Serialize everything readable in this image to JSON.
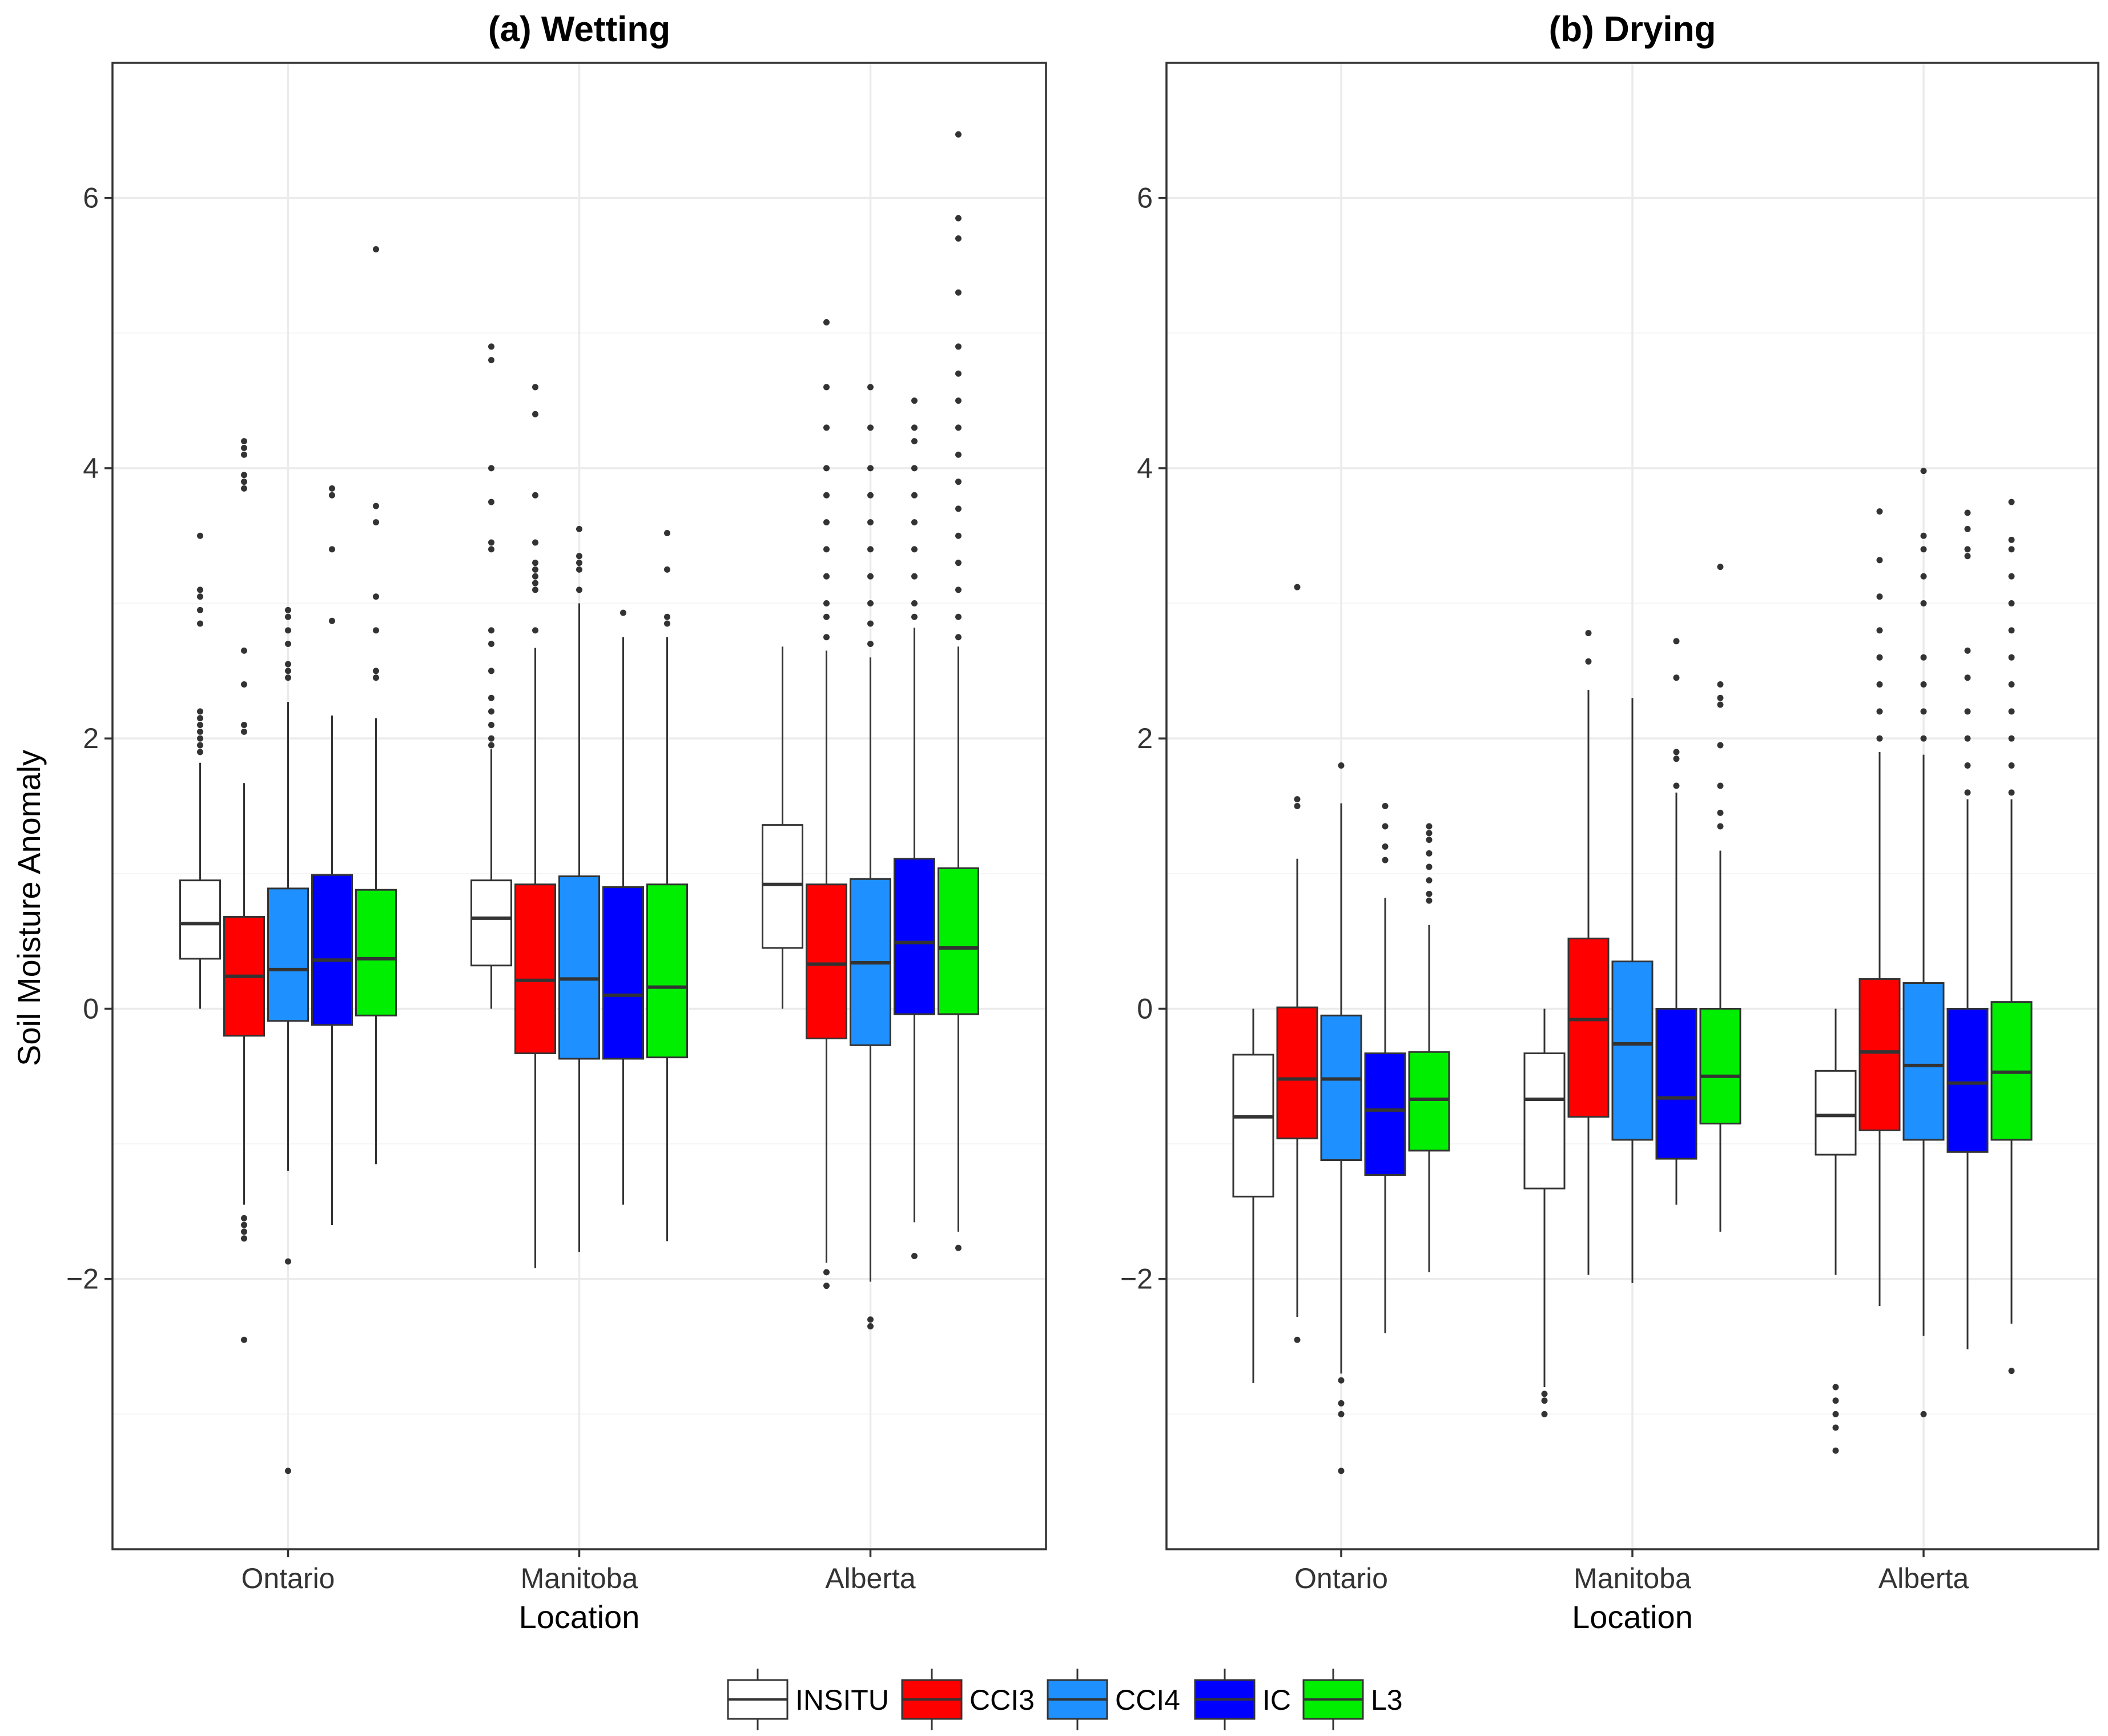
{
  "chart_data": [
    {
      "type": "box",
      "title": "(a) Wetting",
      "xlabel": "Location",
      "ylabel": "Soil Moisture Anomaly",
      "ylim": [
        -4.0,
        7.0
      ],
      "yticks": [
        -2,
        0,
        2,
        4,
        6
      ],
      "ytick_labels": [
        "−2",
        "0",
        "2",
        "4",
        "6"
      ],
      "grid": true,
      "categories": [
        "Ontario",
        "Manitoba",
        "Alberta"
      ],
      "series": [
        {
          "name": "INSITU",
          "boxes": [
            {
              "low": 0.0,
              "q1": 0.37,
              "median": 0.63,
              "q3": 0.95,
              "high": 1.82,
              "outliers": [
                1.9,
                1.95,
                2.0,
                2.05,
                2.1,
                2.15,
                2.2,
                2.85,
                2.95,
                3.05,
                3.1,
                3.5
              ]
            },
            {
              "low": 0.0,
              "q1": 0.32,
              "median": 0.67,
              "q3": 0.95,
              "high": 1.92,
              "outliers": [
                1.95,
                2.0,
                2.1,
                2.2,
                2.3,
                2.5,
                2.7,
                2.8,
                3.4,
                3.45,
                3.75,
                4.0,
                4.8,
                4.9
              ]
            },
            {
              "low": 0.0,
              "q1": 0.45,
              "median": 0.92,
              "q3": 1.36,
              "high": 2.68,
              "outliers": []
            }
          ]
        },
        {
          "name": "CCI3",
          "boxes": [
            {
              "low": -1.45,
              "q1": -0.2,
              "median": 0.24,
              "q3": 0.68,
              "high": 1.67,
              "outliers": [
                -1.55,
                -1.6,
                -1.65,
                -1.7,
                -2.45,
                2.05,
                2.1,
                2.4,
                2.65,
                3.85,
                3.9,
                3.95,
                4.1,
                4.15,
                4.2
              ]
            },
            {
              "low": -1.92,
              "q1": -0.33,
              "median": 0.21,
              "q3": 0.92,
              "high": 2.67,
              "outliers": [
                2.8,
                3.1,
                3.15,
                3.2,
                3.25,
                3.3,
                3.45,
                3.8,
                4.4,
                4.6
              ]
            },
            {
              "low": -1.88,
              "q1": -0.22,
              "median": 0.33,
              "q3": 0.92,
              "high": 2.65,
              "outliers": [
                -1.95,
                -2.05,
                2.75,
                2.9,
                3.0,
                3.2,
                3.4,
                3.6,
                3.8,
                4.0,
                4.3,
                4.6,
                5.08
              ]
            }
          ]
        },
        {
          "name": "CCI4",
          "boxes": [
            {
              "low": -1.2,
              "q1": -0.09,
              "median": 0.29,
              "q3": 0.89,
              "high": 2.27,
              "outliers": [
                -1.87,
                -3.42,
                2.45,
                2.5,
                2.55,
                2.7,
                2.8,
                2.9,
                2.95
              ]
            },
            {
              "low": -1.8,
              "q1": -0.37,
              "median": 0.22,
              "q3": 0.98,
              "high": 3.0,
              "outliers": [
                3.1,
                3.25,
                3.3,
                3.35,
                3.55
              ]
            },
            {
              "low": -2.02,
              "q1": -0.27,
              "median": 0.34,
              "q3": 0.96,
              "high": 2.6,
              "outliers": [
                -2.3,
                -2.35,
                2.7,
                2.85,
                3.0,
                3.2,
                3.4,
                3.6,
                3.8,
                4.0,
                4.3,
                4.6
              ]
            }
          ]
        },
        {
          "name": "IC",
          "boxes": [
            {
              "low": -1.6,
              "q1": -0.12,
              "median": 0.36,
              "q3": 0.99,
              "high": 2.17,
              "outliers": [
                2.87,
                3.4,
                3.8,
                3.85
              ]
            },
            {
              "low": -1.45,
              "q1": -0.37,
              "median": 0.1,
              "q3": 0.9,
              "high": 2.75,
              "outliers": [
                2.93
              ]
            },
            {
              "low": -1.58,
              "q1": -0.04,
              "median": 0.49,
              "q3": 1.11,
              "high": 2.82,
              "outliers": [
                -1.83,
                2.9,
                3.0,
                3.2,
                3.4,
                3.6,
                3.8,
                4.0,
                4.2,
                4.3,
                4.5
              ]
            }
          ]
        },
        {
          "name": "L3",
          "boxes": [
            {
              "low": -1.15,
              "q1": -0.05,
              "median": 0.37,
              "q3": 0.88,
              "high": 2.15,
              "outliers": [
                2.45,
                2.5,
                2.8,
                3.05,
                3.6,
                3.72,
                5.62
              ]
            },
            {
              "low": -1.72,
              "q1": -0.36,
              "median": 0.16,
              "q3": 0.92,
              "high": 2.75,
              "outliers": [
                2.85,
                2.9,
                3.25,
                3.52
              ]
            },
            {
              "low": -1.65,
              "q1": -0.04,
              "median": 0.45,
              "q3": 1.04,
              "high": 2.68,
              "outliers": [
                -1.77,
                2.75,
                2.9,
                3.1,
                3.3,
                3.5,
                3.7,
                3.9,
                4.1,
                4.3,
                4.5,
                4.7,
                4.9,
                5.3,
                5.7,
                5.85,
                6.47
              ]
            }
          ]
        }
      ]
    },
    {
      "type": "box",
      "title": "(b) Drying",
      "xlabel": "Location",
      "ylabel": "",
      "ylim": [
        -4.0,
        7.0
      ],
      "yticks": [
        -2,
        0,
        2,
        4,
        6
      ],
      "ytick_labels": [
        "−2",
        "0",
        "2",
        "4",
        "6"
      ],
      "grid": true,
      "categories": [
        "Ontario",
        "Manitoba",
        "Alberta"
      ],
      "series": [
        {
          "name": "INSITU",
          "boxes": [
            {
              "low": -2.77,
              "q1": -1.39,
              "median": -0.8,
              "q3": -0.34,
              "high": 0.0,
              "outliers": []
            },
            {
              "low": -2.8,
              "q1": -1.33,
              "median": -0.67,
              "q3": -0.33,
              "high": 0.0,
              "outliers": [
                -2.85,
                -2.9,
                -3.0
              ]
            },
            {
              "low": -1.97,
              "q1": -1.08,
              "median": -0.79,
              "q3": -0.46,
              "high": 0.0,
              "outliers": [
                -2.8,
                -2.9,
                -3.0,
                -3.1,
                -3.27
              ]
            }
          ]
        },
        {
          "name": "CCI3",
          "boxes": [
            {
              "low": -2.28,
              "q1": -0.96,
              "median": -0.52,
              "q3": 0.01,
              "high": 1.11,
              "outliers": [
                -2.45,
                1.5,
                1.55,
                3.12
              ]
            },
            {
              "low": -1.97,
              "q1": -0.8,
              "median": -0.08,
              "q3": 0.52,
              "high": 2.36,
              "outliers": [
                2.57,
                2.78
              ]
            },
            {
              "low": -2.2,
              "q1": -0.9,
              "median": -0.32,
              "q3": 0.22,
              "high": 1.9,
              "outliers": [
                2.0,
                2.2,
                2.4,
                2.6,
                2.8,
                3.05,
                3.32,
                3.68
              ]
            }
          ]
        },
        {
          "name": "CCI4",
          "boxes": [
            {
              "low": -2.7,
              "q1": -1.12,
              "median": -0.52,
              "q3": -0.05,
              "high": 1.52,
              "outliers": [
                -2.75,
                -2.92,
                -3.0,
                -3.42,
                1.8
              ]
            },
            {
              "low": -2.03,
              "q1": -0.97,
              "median": -0.26,
              "q3": 0.35,
              "high": 2.3,
              "outliers": []
            },
            {
              "low": -2.42,
              "q1": -0.97,
              "median": -0.42,
              "q3": 0.19,
              "high": 1.88,
              "outliers": [
                -3.0,
                2.0,
                2.2,
                2.4,
                2.6,
                3.0,
                3.2,
                3.4,
                3.5,
                3.98
              ]
            }
          ]
        },
        {
          "name": "IC",
          "boxes": [
            {
              "low": -2.4,
              "q1": -1.23,
              "median": -0.75,
              "q3": -0.33,
              "high": 0.82,
              "outliers": [
                1.1,
                1.2,
                1.35,
                1.5
              ]
            },
            {
              "low": -1.45,
              "q1": -1.11,
              "median": -0.66,
              "q3": 0.0,
              "high": 1.6,
              "outliers": [
                1.65,
                1.85,
                1.9,
                2.45,
                2.72
              ]
            },
            {
              "low": -2.52,
              "q1": -1.06,
              "median": -0.55,
              "q3": 0.0,
              "high": 1.55,
              "outliers": [
                1.6,
                1.8,
                2.0,
                2.2,
                2.45,
                2.65,
                3.35,
                3.4,
                3.55,
                3.67
              ]
            }
          ]
        },
        {
          "name": "L3",
          "boxes": [
            {
              "low": -1.95,
              "q1": -1.05,
              "median": -0.67,
              "q3": -0.32,
              "high": 0.62,
              "outliers": [
                0.8,
                0.85,
                0.95,
                1.05,
                1.15,
                1.25,
                1.3,
                1.35
              ]
            },
            {
              "low": -1.65,
              "q1": -0.85,
              "median": -0.5,
              "q3": 0.0,
              "high": 1.17,
              "outliers": [
                1.35,
                1.45,
                1.65,
                1.95,
                2.25,
                2.3,
                2.4,
                3.27
              ]
            },
            {
              "low": -2.33,
              "q1": -0.97,
              "median": -0.47,
              "q3": 0.05,
              "high": 1.55,
              "outliers": [
                -2.68,
                1.6,
                1.8,
                2.0,
                2.2,
                2.4,
                2.6,
                2.8,
                3.0,
                3.2,
                3.4,
                3.47,
                3.75
              ]
            }
          ]
        }
      ]
    }
  ],
  "legend": {
    "items": [
      {
        "name": "INSITU",
        "color": "#FFFFFF"
      },
      {
        "name": "CCI3",
        "color": "#FF0000"
      },
      {
        "name": "CCI4",
        "color": "#1E90FF"
      },
      {
        "name": "IC",
        "color": "#0000FF"
      },
      {
        "name": "L3",
        "color": "#00EE00"
      }
    ]
  },
  "colors": {
    "INSITU": "#FFFFFF",
    "CCI3": "#FF0000",
    "CCI4": "#1E90FF",
    "IC": "#0000FF",
    "L3": "#00EE00",
    "grid_major": "#EBEBEB",
    "grid_minor": "#F5F5F5",
    "panel_border": "#333333",
    "box_outline": "#333333"
  }
}
